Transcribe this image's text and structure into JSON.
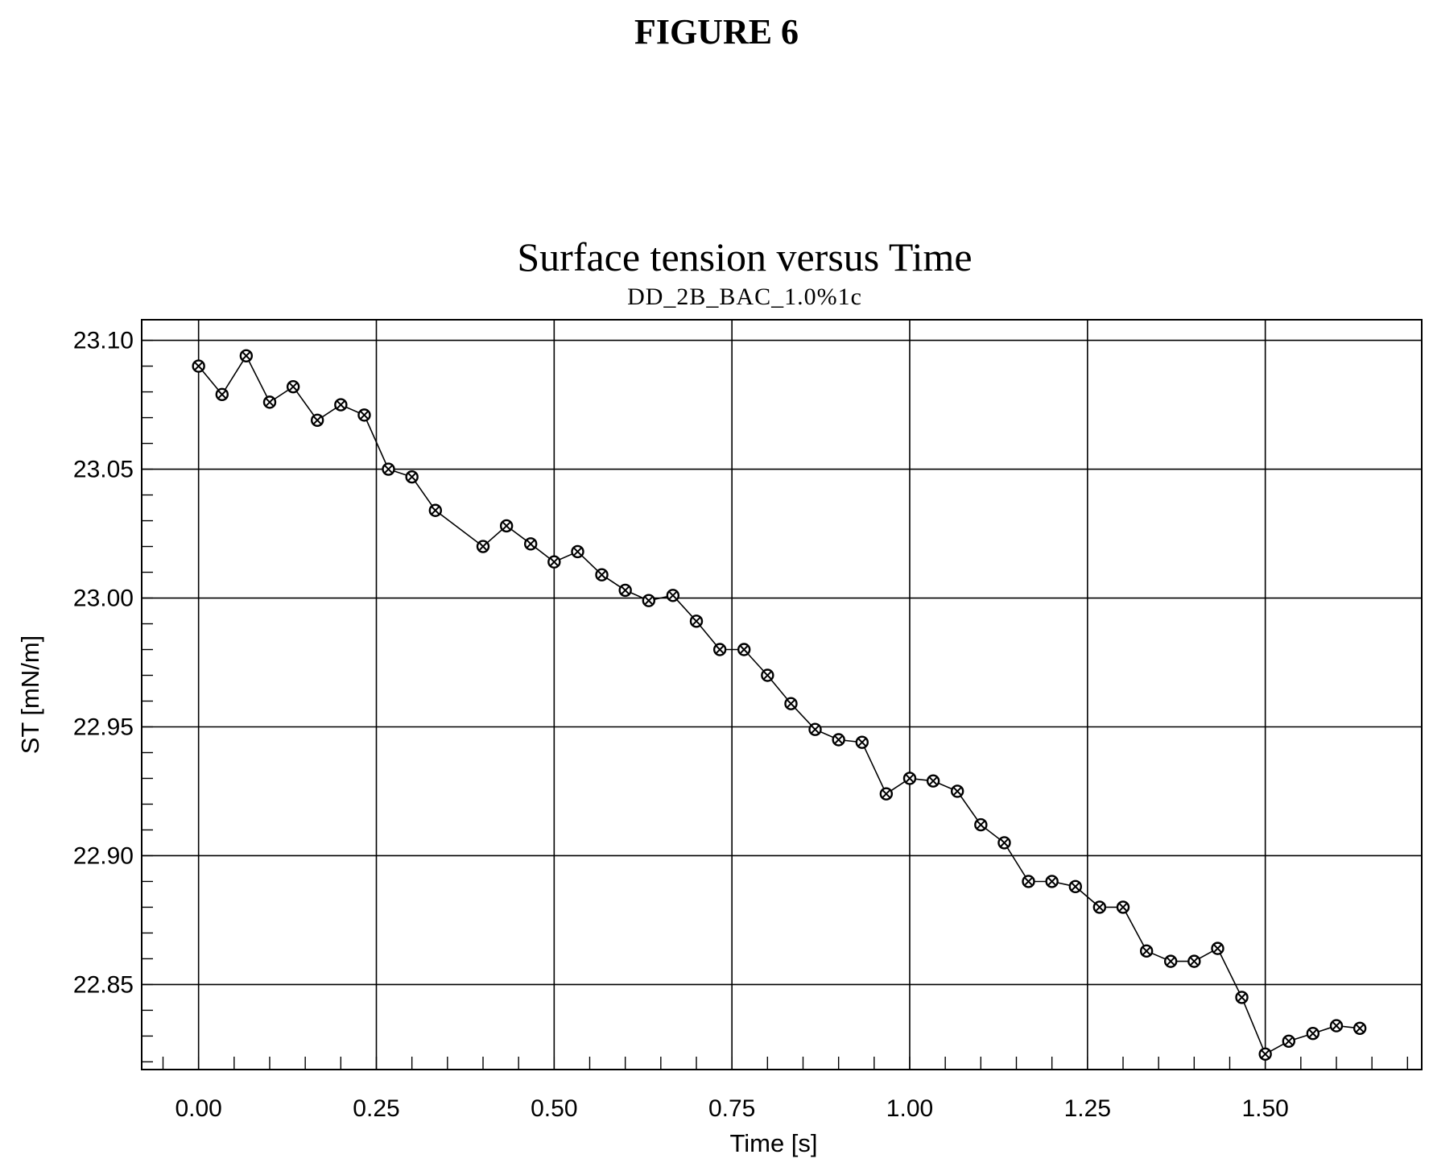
{
  "figure_label": "FIGURE 6",
  "chart_data": {
    "type": "line",
    "title": "Surface tension versus Time",
    "subtitle": "DD_2B_BAC_1.0%1c",
    "xlabel": "Time [s]",
    "ylabel": "ST [mN/m]",
    "xlim": [
      -0.08,
      1.72
    ],
    "ylim": [
      22.817,
      23.108
    ],
    "xticks": [
      0.0,
      0.25,
      0.5,
      0.75,
      1.0,
      1.25,
      1.5
    ],
    "xtick_labels": [
      "0.00",
      "0.25",
      "0.50",
      "0.75",
      "1.00",
      "1.25",
      "1.50"
    ],
    "yticks": [
      22.85,
      22.9,
      22.95,
      23.0,
      23.05,
      23.1
    ],
    "ytick_labels": [
      "22.85",
      "22.90",
      "22.95",
      "23.00",
      "23.05",
      "23.10"
    ],
    "grid": true,
    "marker": "circle-cross",
    "series": [
      {
        "x": [
          0.0,
          0.033,
          0.067,
          0.1,
          0.133,
          0.167,
          0.2,
          0.233,
          0.267,
          0.3,
          0.333,
          0.4,
          0.433,
          0.467,
          0.5,
          0.533,
          0.567,
          0.6,
          0.633,
          0.667,
          0.7,
          0.733,
          0.767,
          0.8,
          0.833,
          0.867,
          0.9,
          0.933,
          0.967,
          1.0,
          1.033,
          1.067,
          1.1,
          1.133,
          1.167,
          1.2,
          1.233,
          1.267,
          1.3,
          1.333,
          1.367,
          1.4,
          1.433,
          1.467,
          1.5,
          1.533,
          1.567,
          1.6,
          1.633
        ],
        "y": [
          23.09,
          23.079,
          23.094,
          23.076,
          23.082,
          23.069,
          23.075,
          23.071,
          23.05,
          23.047,
          23.034,
          23.02,
          23.028,
          23.021,
          23.014,
          23.018,
          23.009,
          23.003,
          22.999,
          23.001,
          22.991,
          22.98,
          22.98,
          22.97,
          22.959,
          22.949,
          22.945,
          22.944,
          22.924,
          22.93,
          22.929,
          22.925,
          22.912,
          22.905,
          22.89,
          22.89,
          22.888,
          22.88,
          22.88,
          22.863,
          22.859,
          22.859,
          22.864,
          22.845,
          22.823,
          22.828,
          22.831,
          22.834,
          22.833
        ]
      }
    ]
  }
}
